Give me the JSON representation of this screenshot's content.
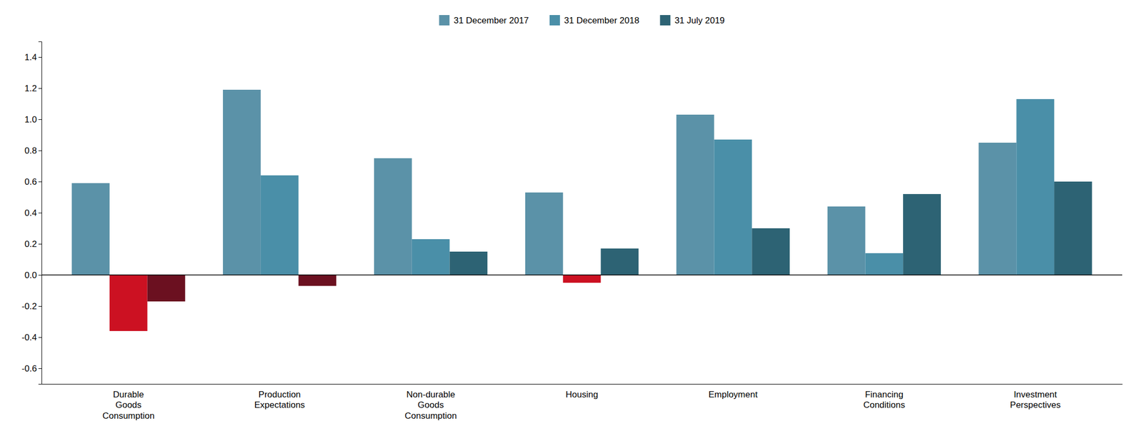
{
  "chart_data": {
    "type": "bar",
    "categories": [
      "Durable\nGoods\nConsumption",
      "Production\nExpectations",
      "Non-durable\nGoods\nConsumption",
      "Housing",
      "Employment",
      "Financing\nConditions",
      "Investment\nPerspectives"
    ],
    "series": [
      {
        "name": "31 December 2017",
        "color": "#5b92a8",
        "colors": [
          "#5b92a8",
          "#5b92a8",
          "#5b92a8",
          "#5b92a8",
          "#5b92a8",
          "#5b92a8",
          "#5b92a8"
        ],
        "values": [
          0.59,
          1.19,
          0.75,
          0.53,
          1.03,
          0.44,
          0.85
        ]
      },
      {
        "name": "31 December 2018",
        "color": "#4a8fa8",
        "colors": [
          "#cc1122",
          "#4a8fa8",
          "#4a8fa8",
          "#cc1122",
          "#4a8fa8",
          "#4a8fa8",
          "#4a8fa8"
        ],
        "values": [
          -0.36,
          0.64,
          0.23,
          -0.05,
          0.87,
          0.14,
          1.13
        ]
      },
      {
        "name": "31 July 2019",
        "color": "#2d6374",
        "colors": [
          "#6b1020",
          "#6b1020",
          "#2d6374",
          "#2d6374",
          "#2d6374",
          "#2d6374",
          "#2d6374"
        ],
        "values": [
          -0.17,
          -0.07,
          0.15,
          0.17,
          0.3,
          0.52,
          0.6
        ]
      }
    ],
    "ylim": [
      -0.7,
      1.5
    ],
    "yticks": [
      -0.6,
      -0.4,
      -0.2,
      {
        "value": 0,
        "label": "0.0"
      },
      0.2,
      0.4,
      0.6,
      0.8,
      {
        "value": 1,
        "label": "1.0"
      },
      1.2,
      1.4
    ],
    "grid": false,
    "legend": "top"
  }
}
